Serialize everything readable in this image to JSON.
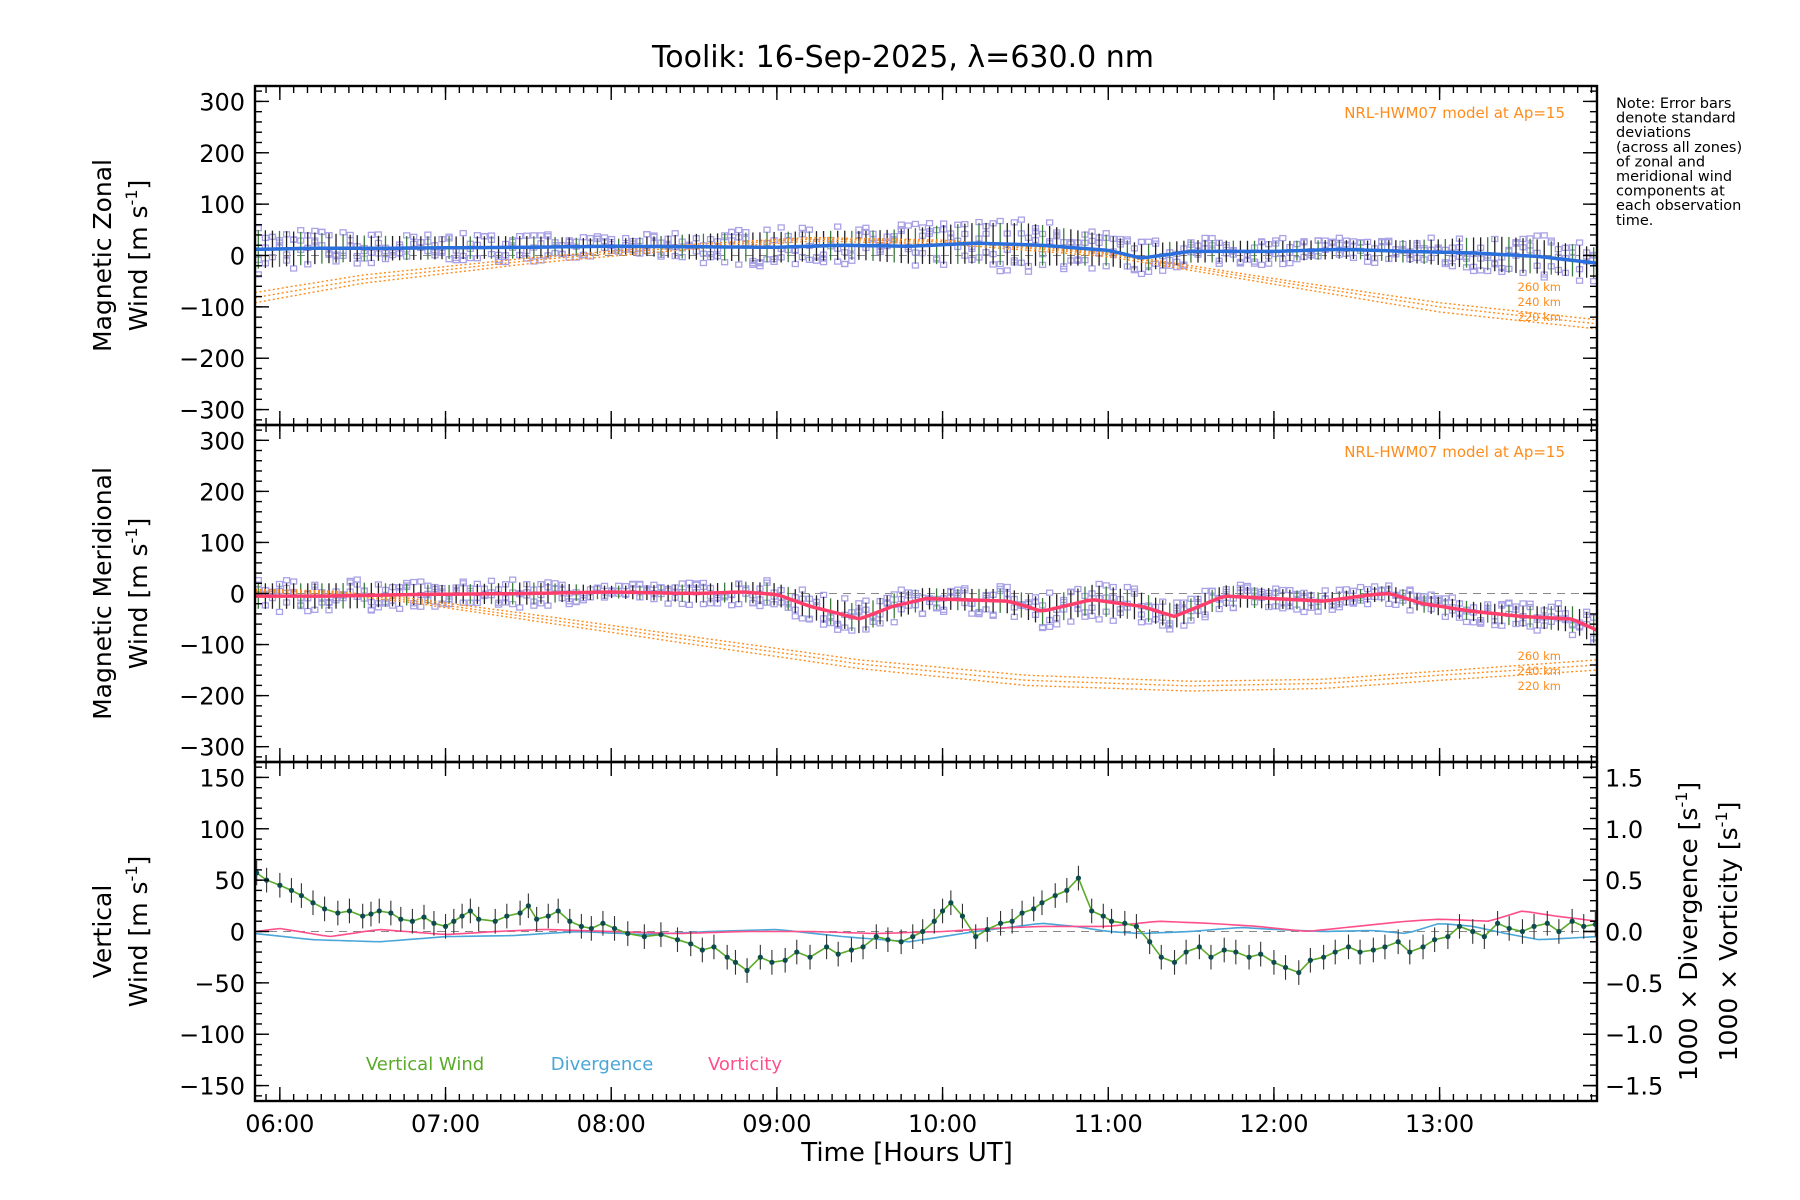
{
  "title": "Toolik: 16-Sep-2025, λ=630.0 nm",
  "note": [
    "Note: Error bars",
    "denote standard",
    "deviations",
    "(across all zones)",
    "of zonal and",
    "meridional wind",
    "components at",
    "each observation",
    "time."
  ],
  "colors": {
    "zonal": "#2a6fdb",
    "meridional": "#ff3e6c",
    "model": "#ff8c1a",
    "zones": "#a9a2e6",
    "vertical": "#5aaa2a",
    "divergence": "#4aa6d8",
    "vorticity": "#ff4f8b",
    "points": "#0e4b4f"
  },
  "chart_data": [
    {
      "type": "line",
      "name": "zonal-panel",
      "ylabel_line1": "Magnetic Zonal",
      "ylabel_line2": "Wind [m s",
      "ylabel_sup": "-1",
      "ylabel_end": "]",
      "ylim": [
        -330,
        330
      ],
      "yticks": [
        300,
        200,
        100,
        0,
        -100,
        -200,
        -300
      ],
      "xlim": [
        5.85,
        13.95
      ],
      "model_label": "NRL-HWM07 model at Ap=15",
      "alt_labels": [
        "260 km",
        "240 km",
        "220 km"
      ],
      "model_curves": [
        {
          "name": "260 km",
          "x": [
            5.85,
            6.5,
            7.5,
            8.5,
            9.2,
            10.0,
            11.0,
            12.0,
            13.0,
            13.95
          ],
          "y": [
            -72,
            -38,
            -5,
            22,
            35,
            30,
            5,
            -45,
            -92,
            -125
          ]
        },
        {
          "name": "240 km",
          "x": [
            5.85,
            6.5,
            7.5,
            8.5,
            9.2,
            10.0,
            11.0,
            12.0,
            13.0,
            13.95
          ],
          "y": [
            -82,
            -46,
            -10,
            18,
            32,
            27,
            2,
            -50,
            -100,
            -133
          ]
        },
        {
          "name": "220 km",
          "x": [
            5.85,
            6.5,
            7.5,
            8.5,
            9.2,
            10.0,
            11.0,
            12.0,
            13.0,
            13.95
          ],
          "y": [
            -92,
            -54,
            -16,
            13,
            28,
            23,
            -2,
            -56,
            -110,
            -143
          ]
        }
      ],
      "mean": {
        "x": [
          5.85,
          6.2,
          6.6,
          7.0,
          7.5,
          8.0,
          8.5,
          9.0,
          9.4,
          9.8,
          10.2,
          10.6,
          11.0,
          11.2,
          11.5,
          12.0,
          12.4,
          12.8,
          13.2,
          13.6,
          13.95
        ],
        "y": [
          12,
          14,
          14,
          15,
          16,
          18,
          17,
          16,
          20,
          18,
          24,
          20,
          10,
          -5,
          8,
          8,
          12,
          8,
          5,
          -2,
          -15
        ]
      },
      "error": {
        "x": [
          5.85,
          6.5,
          7.0,
          7.5,
          8.0,
          8.5,
          9.0,
          9.5,
          10.0,
          10.5,
          11.0,
          11.5,
          12.0,
          12.5,
          13.0,
          13.4,
          13.95
        ],
        "sd": [
          38,
          25,
          22,
          22,
          14,
          25,
          30,
          28,
          38,
          42,
          30,
          22,
          20,
          18,
          25,
          35,
          30
        ]
      }
    },
    {
      "type": "line",
      "name": "meridional-panel",
      "ylabel_line1": "Magnetic Meridional",
      "ylabel_line2": "Wind [m s",
      "ylabel_sup": "-1",
      "ylabel_end": "]",
      "ylim": [
        -330,
        330
      ],
      "yticks": [
        300,
        200,
        100,
        0,
        -100,
        -200,
        -300
      ],
      "xlim": [
        5.85,
        13.95
      ],
      "model_label": "NRL-HWM07 model at Ap=15",
      "alt_labels": [
        "260 km",
        "240 km",
        "220 km"
      ],
      "model_curves": [
        {
          "name": "260 km",
          "x": [
            5.85,
            6.3,
            6.8,
            7.5,
            8.5,
            9.5,
            10.5,
            11.5,
            12.3,
            13.0,
            13.95
          ],
          "y": [
            8,
            5,
            -10,
            -40,
            -85,
            -130,
            -160,
            -172,
            -168,
            -152,
            -130
          ]
        },
        {
          "name": "240 km",
          "x": [
            5.85,
            6.3,
            6.8,
            7.5,
            8.5,
            9.5,
            10.5,
            11.5,
            12.3,
            13.0,
            13.95
          ],
          "y": [
            6,
            3,
            -14,
            -46,
            -92,
            -138,
            -170,
            -181,
            -176,
            -160,
            -140
          ]
        },
        {
          "name": "220 km",
          "x": [
            5.85,
            6.3,
            6.8,
            7.5,
            8.5,
            9.5,
            10.5,
            11.5,
            12.3,
            13.0,
            13.95
          ],
          "y": [
            3,
            0,
            -18,
            -52,
            -100,
            -147,
            -180,
            -191,
            -186,
            -170,
            -150
          ]
        }
      ],
      "mean": {
        "x": [
          5.85,
          6.3,
          6.8,
          7.5,
          8.0,
          8.5,
          8.8,
          9.0,
          9.2,
          9.5,
          9.7,
          9.9,
          10.1,
          10.4,
          10.6,
          10.9,
          11.2,
          11.4,
          11.7,
          12.0,
          12.3,
          12.6,
          12.7,
          12.9,
          13.2,
          13.5,
          13.8,
          13.95
        ],
        "y": [
          -5,
          -5,
          -2,
          0,
          3,
          0,
          3,
          -2,
          -25,
          -50,
          -25,
          -10,
          -12,
          -15,
          -35,
          -12,
          -25,
          -45,
          -5,
          -10,
          -15,
          -2,
          0,
          -20,
          -35,
          -45,
          -50,
          -72
        ]
      },
      "error": {
        "x": [
          5.85,
          6.5,
          7.0,
          7.5,
          8.0,
          8.5,
          9.0,
          9.5,
          10.0,
          10.5,
          11.0,
          11.5,
          12.0,
          12.5,
          13.0,
          13.5,
          13.95
        ],
        "sd": [
          25,
          25,
          18,
          22,
          12,
          18,
          22,
          28,
          20,
          25,
          30,
          22,
          20,
          14,
          18,
          20,
          28
        ]
      }
    },
    {
      "type": "line",
      "name": "vertical-panel",
      "ylabel_line1": "Vertical",
      "ylabel_line2": "Wind [m s",
      "ylabel_sup": "-1",
      "ylabel_end": "]",
      "ylim": [
        -165,
        165
      ],
      "yticks": [
        150,
        100,
        50,
        0,
        -50,
        -100,
        -150
      ],
      "y2lim": [
        -1.65,
        1.65
      ],
      "y2ticks": [
        "1.5",
        "1.0",
        "0.5",
        "0.0",
        "−0.5",
        "−1.0",
        "−1.5"
      ],
      "y2ticks_values": [
        1.5,
        1.0,
        0.5,
        0.0,
        -0.5,
        -1.0,
        -1.5
      ],
      "y2label_div": "1000 × Divergence [s",
      "y2label_vort": "1000 × Vorticity [s",
      "y2label_sup": "-1",
      "y2label_end": "]",
      "xlim": [
        5.85,
        13.95
      ],
      "xticks": [
        6,
        7,
        8,
        9,
        10,
        11,
        12,
        13
      ],
      "xticklabels": [
        "06:00",
        "07:00",
        "08:00",
        "09:00",
        "10:00",
        "11:00",
        "12:00",
        "13:00"
      ],
      "xlabel": "Time [Hours UT]",
      "legend": [
        "Vertical Wind",
        "Divergence",
        "Vorticity"
      ],
      "series": [
        {
          "name": "Vertical Wind",
          "x": [
            5.86,
            5.92,
            6.0,
            6.07,
            6.13,
            6.2,
            6.27,
            6.35,
            6.42,
            6.5,
            6.55,
            6.6,
            6.67,
            6.73,
            6.8,
            6.87,
            6.93,
            7.0,
            7.05,
            7.1,
            7.15,
            7.2,
            7.3,
            7.37,
            7.45,
            7.5,
            7.55,
            7.62,
            7.68,
            7.75,
            7.82,
            7.88,
            7.95,
            8.02,
            8.1,
            8.2,
            8.3,
            8.4,
            8.48,
            8.55,
            8.62,
            8.7,
            8.75,
            8.82,
            8.9,
            8.97,
            9.05,
            9.12,
            9.2,
            9.3,
            9.37,
            9.45,
            9.52,
            9.6,
            9.67,
            9.75,
            9.82,
            9.88,
            9.95,
            10.0,
            10.05,
            10.12,
            10.2,
            10.27,
            10.35,
            10.42,
            10.48,
            10.55,
            10.6,
            10.68,
            10.75,
            10.82,
            10.9,
            10.97,
            11.02,
            11.1,
            11.17,
            11.25,
            11.32,
            11.4,
            11.47,
            11.55,
            11.62,
            11.7,
            11.77,
            11.85,
            11.92,
            12.0,
            12.07,
            12.15,
            12.22,
            12.3,
            12.37,
            12.45,
            12.52,
            12.6,
            12.67,
            12.75,
            12.82,
            12.9,
            12.97,
            13.05,
            13.12,
            13.2,
            13.27,
            13.35,
            13.42,
            13.5,
            13.57,
            13.65,
            13.72,
            13.8,
            13.87,
            13.94
          ],
          "y": [
            57,
            50,
            45,
            40,
            35,
            28,
            22,
            18,
            20,
            15,
            17,
            20,
            18,
            12,
            10,
            14,
            8,
            5,
            10,
            15,
            20,
            12,
            10,
            15,
            18,
            25,
            12,
            15,
            20,
            10,
            5,
            3,
            8,
            3,
            -2,
            -5,
            -3,
            -8,
            -12,
            -18,
            -15,
            -25,
            -30,
            -38,
            -25,
            -30,
            -28,
            -20,
            -25,
            -15,
            -22,
            -18,
            -15,
            -5,
            -8,
            -10,
            -5,
            0,
            10,
            20,
            28,
            15,
            -5,
            2,
            8,
            10,
            18,
            22,
            28,
            35,
            40,
            52,
            20,
            15,
            10,
            8,
            5,
            -10,
            -25,
            -30,
            -20,
            -15,
            -25,
            -18,
            -20,
            -25,
            -22,
            -30,
            -35,
            -40,
            -28,
            -25,
            -20,
            -15,
            -20,
            -18,
            -15,
            -10,
            -20,
            -15,
            -8,
            -5,
            5,
            0,
            -5,
            8,
            3,
            0,
            5,
            8,
            0,
            10,
            5,
            7
          ]
        },
        {
          "name": "Divergence",
          "x": [
            5.85,
            6.2,
            6.6,
            7.0,
            7.4,
            7.8,
            8.2,
            8.6,
            9.0,
            9.4,
            9.8,
            10.2,
            10.6,
            10.8,
            11.0,
            11.2,
            11.5,
            11.8,
            12.0,
            12.3,
            12.6,
            12.8,
            13.0,
            13.2,
            13.4,
            13.6,
            13.95
          ],
          "y": [
            -0.02,
            -0.08,
            -0.1,
            -0.05,
            -0.04,
            0.0,
            -0.03,
            0.0,
            0.02,
            -0.05,
            -0.1,
            0.0,
            0.08,
            0.05,
            0.0,
            -0.02,
            0.0,
            0.04,
            0.02,
            0.0,
            0.01,
            -0.02,
            0.08,
            0.05,
            -0.02,
            -0.08,
            -0.05
          ]
        },
        {
          "name": "Vorticity",
          "x": [
            5.85,
            6.0,
            6.3,
            6.6,
            7.0,
            7.3,
            7.6,
            8.0,
            8.4,
            8.8,
            9.2,
            9.6,
            10.0,
            10.3,
            10.6,
            11.0,
            11.3,
            11.6,
            11.9,
            12.2,
            12.5,
            12.8,
            13.0,
            13.3,
            13.5,
            13.7,
            13.95
          ],
          "y": [
            0.0,
            0.03,
            -0.05,
            0.02,
            -0.03,
            0.0,
            0.02,
            0.0,
            -0.02,
            0.0,
            0.0,
            -0.02,
            0.0,
            0.03,
            0.05,
            0.05,
            0.1,
            0.08,
            0.05,
            0.0,
            0.05,
            0.1,
            0.12,
            0.1,
            0.2,
            0.15,
            0.1
          ]
        }
      ]
    }
  ]
}
